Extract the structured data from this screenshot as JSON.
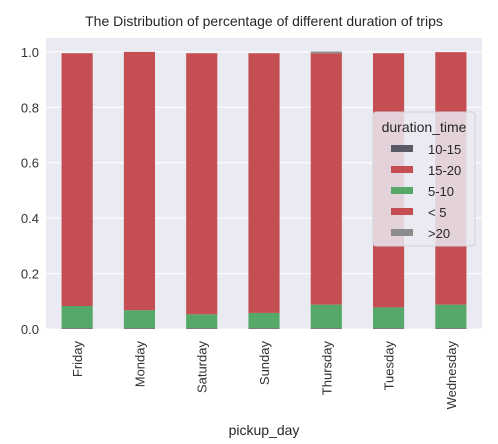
{
  "colors": {
    "plot_bg": "#eaeaf2",
    "grid": "#ffffff",
    "series_10_15": "#5a5a66",
    "series_15_20": "#c44e52",
    "series_5_10": "#55a868",
    "series_lt5": "#c44e52",
    "series_gt20": "#8c8c8c"
  },
  "chart_data": {
    "type": "bar",
    "stacked": true,
    "title": "The Distribution of percentage of different duration of trips",
    "xlabel": "pickup_day",
    "ylabel": "",
    "ylim": [
      0,
      1.05
    ],
    "yticks": [
      "0.0",
      "0.2",
      "0.4",
      "0.6",
      "0.8",
      "1.0"
    ],
    "categories": [
      "Friday",
      "Monday",
      "Saturday",
      "Sunday",
      "Thursday",
      "Tuesday",
      "Wednesday"
    ],
    "grid": true,
    "legend_placement": "center-right",
    "legend_title": "duration_time",
    "series": [
      {
        "name": "10-15",
        "values": [
          0.002,
          0.002,
          0.002,
          0.002,
          0.002,
          0.002,
          0.002
        ]
      },
      {
        "name": "15-20",
        "values": [
          0.001,
          0.001,
          0.001,
          0.001,
          0.001,
          0.001,
          0.001
        ]
      },
      {
        "name": "5-10",
        "values": [
          0.08,
          0.065,
          0.05,
          0.055,
          0.085,
          0.075,
          0.085
        ]
      },
      {
        "name": "< 5",
        "values": [
          0.912,
          0.932,
          0.942,
          0.937,
          0.907,
          0.917,
          0.911
        ]
      },
      {
        "name": ">20",
        "values": [
          0.0,
          0.0,
          0.0,
          0.0,
          0.006,
          0.0,
          0.0
        ]
      }
    ]
  }
}
